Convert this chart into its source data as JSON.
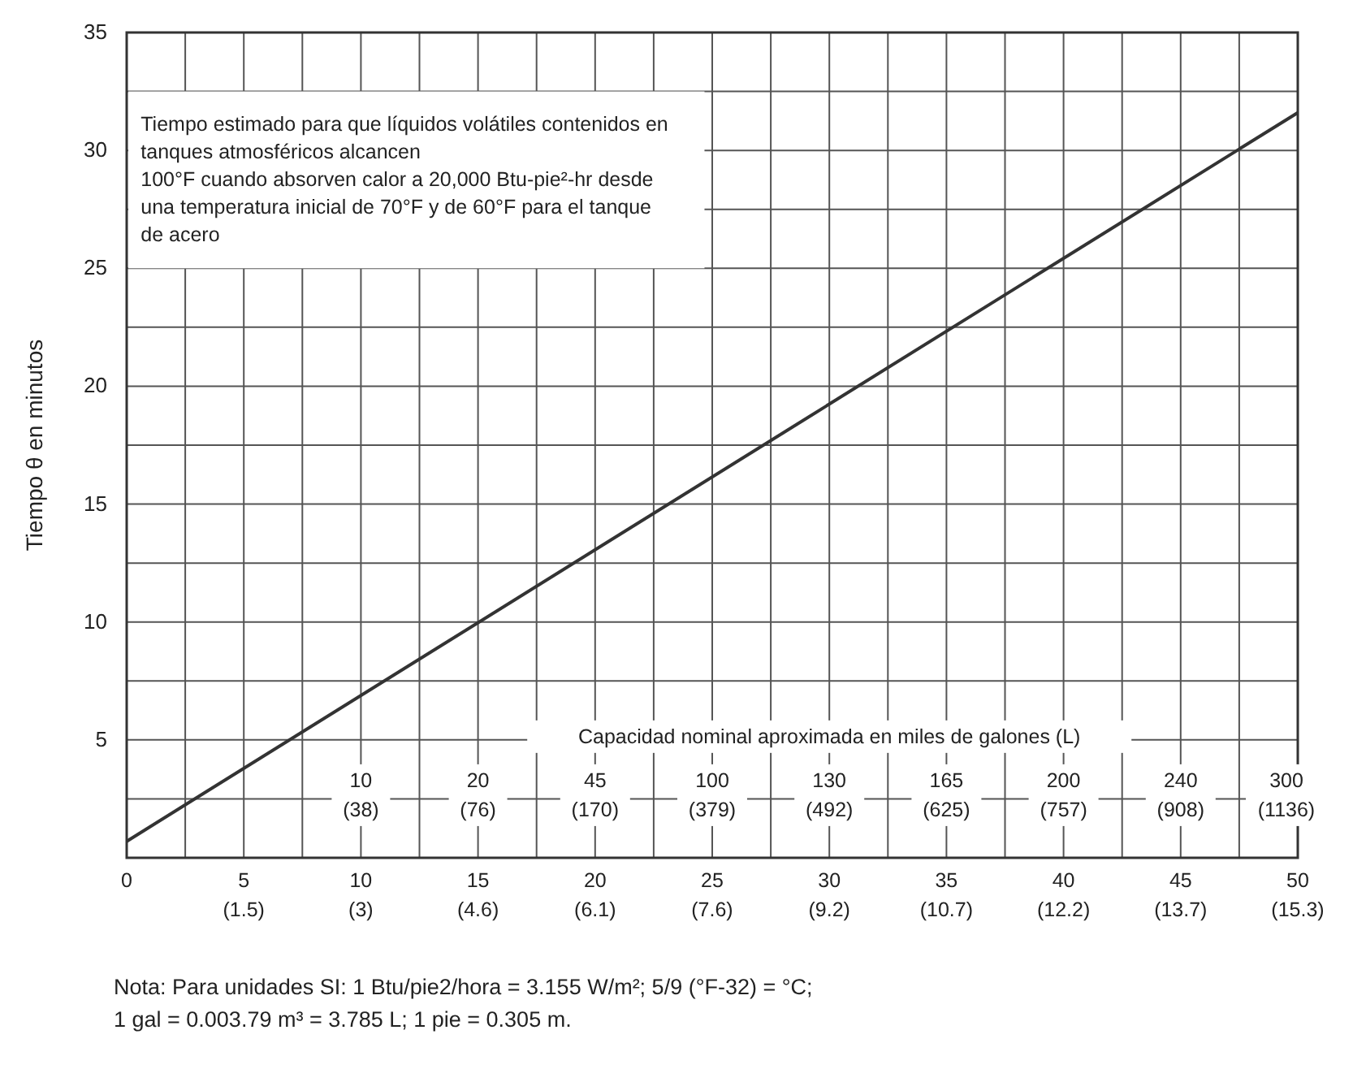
{
  "chart_data": {
    "type": "line",
    "title": "Tiempo estimado para que líquidos volátiles contenidos en\ntanques atmosféricos alcancen\n100°F cuando absorven calor a 20,000 Btu-pie²-hr desde\nuna temperatura inicial de 70°F y de 60°F para el tanque\nde acero",
    "ylabel": "Tiempo θ en minutos",
    "annotations": [
      "Nota: Para unidades SI: 1 Btu/pie2/hora = 3.155 W/m²; 5/9 (°F-32) = °C;\n1 gal = 0.003.79 m³ = 3.785 L; 1 pie = 0.305 m.",
      "Capacidad nominal aproximada en miles de galones (L)",
      "10\n(38)",
      "20\n(76)",
      "45\n(170)",
      "100\n(379)",
      "130\n(492)",
      "165\n(625)",
      "200\n(757)",
      "240\n(908)",
      "300\n(1136)"
    ],
    "series": [
      {
        "x": [
          0,
          50
        ],
        "values": [
          0.7,
          31.6
        ],
        "color": "#333333"
      }
    ],
    "xlim": [
      0,
      50
    ],
    "xticks": [
      0,
      {
        "value": 2.5,
        "label": null
      },
      5,
      {
        "value": 7.5,
        "label": null
      },
      10,
      {
        "value": 12.5,
        "label": null
      },
      15,
      {
        "value": 17.5,
        "label": null
      },
      20,
      {
        "value": 22.5,
        "label": null
      },
      25,
      {
        "value": 27.5,
        "label": null
      },
      30,
      {
        "value": 32.5,
        "label": null
      },
      35,
      {
        "value": 37.5,
        "label": null
      },
      40,
      {
        "value": 42.5,
        "label": null
      },
      45,
      {
        "value": 47.5,
        "label": null
      },
      50
    ],
    "x2lim": [
      0,
      15.25
    ],
    "x2ticks": [
      {
        "value": 1.525,
        "label": "(1.5)"
      },
      {
        "value": 3.05,
        "label": "(3)"
      },
      {
        "value": 4.575,
        "label": "(4.6)"
      },
      {
        "value": 6.1,
        "label": "(6.1)"
      },
      {
        "value": 7.625,
        "label": "(7.6)"
      },
      {
        "value": 9.15,
        "label": "(9.2)"
      },
      {
        "value": 10.675,
        "label": "(10.7)"
      },
      {
        "value": 12.2,
        "label": "(12.2)"
      },
      {
        "value": 13.725,
        "label": "(13.7)"
      },
      {
        "value": 15.25,
        "label": "(15.3)"
      }
    ],
    "ylim": [
      0,
      35
    ],
    "yticks": [
      {
        "value": 0,
        "label": null
      },
      {
        "value": 2.5,
        "label": null
      },
      5,
      {
        "value": 7.5,
        "label": null
      },
      10,
      {
        "value": 12.5,
        "label": null
      },
      15,
      {
        "value": 17.5,
        "label": null
      },
      20,
      {
        "value": 22.5,
        "label": null
      },
      25,
      {
        "value": 27.5,
        "label": null
      },
      30,
      {
        "value": 32.5,
        "label": null
      },
      35
    ],
    "grid": true,
    "marker": "none",
    "line_style": "solid"
  }
}
